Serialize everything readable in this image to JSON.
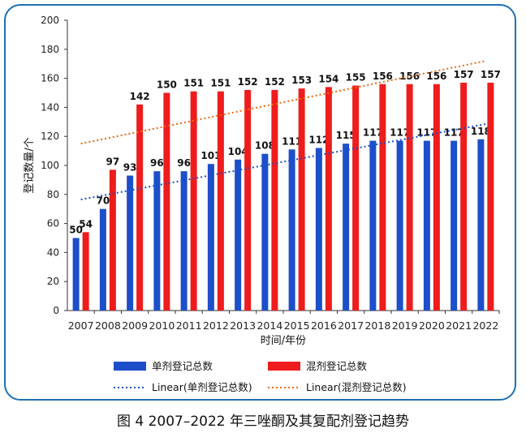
{
  "chart_data": {
    "type": "bar",
    "title": "",
    "xlabel": "时间/年份",
    "ylabel": "登记数量/个",
    "ylim": [
      0,
      200
    ],
    "yticks": [
      0,
      20,
      40,
      60,
      80,
      100,
      120,
      140,
      160,
      180,
      200
    ],
    "grid": false,
    "legend_position": "bottom",
    "categories": [
      "2007",
      "2008",
      "2009",
      "2010",
      "2011",
      "2012",
      "2013",
      "2014",
      "2015",
      "2016",
      "2017",
      "2018",
      "2019",
      "2020",
      "2021",
      "2022"
    ],
    "series": [
      {
        "name": "单剂登记总数",
        "color": "#1c4fc9",
        "values": [
          50,
          70,
          93,
          96,
          96,
          101,
          104,
          108,
          111,
          112,
          115,
          117,
          117,
          117,
          117,
          118
        ]
      },
      {
        "name": "混剂登记总数",
        "color": "#ee1c1c",
        "values": [
          54,
          97,
          142,
          150,
          151,
          151,
          152,
          152,
          153,
          154,
          155,
          156,
          156,
          156,
          157,
          157
        ]
      }
    ],
    "trendlines": [
      {
        "name": "Linear(单剂登记总数)",
        "color": "#1c4fc9",
        "style": "dotted",
        "start": 76.5,
        "end": 128.5
      },
      {
        "name": "Linear(混剂登记总数)",
        "color": "#ee6a10",
        "style": "dotted",
        "start": 115,
        "end": 172
      }
    ]
  },
  "caption": "图 4 2007–2022 年三唑酮及其复配剂登记趋势"
}
